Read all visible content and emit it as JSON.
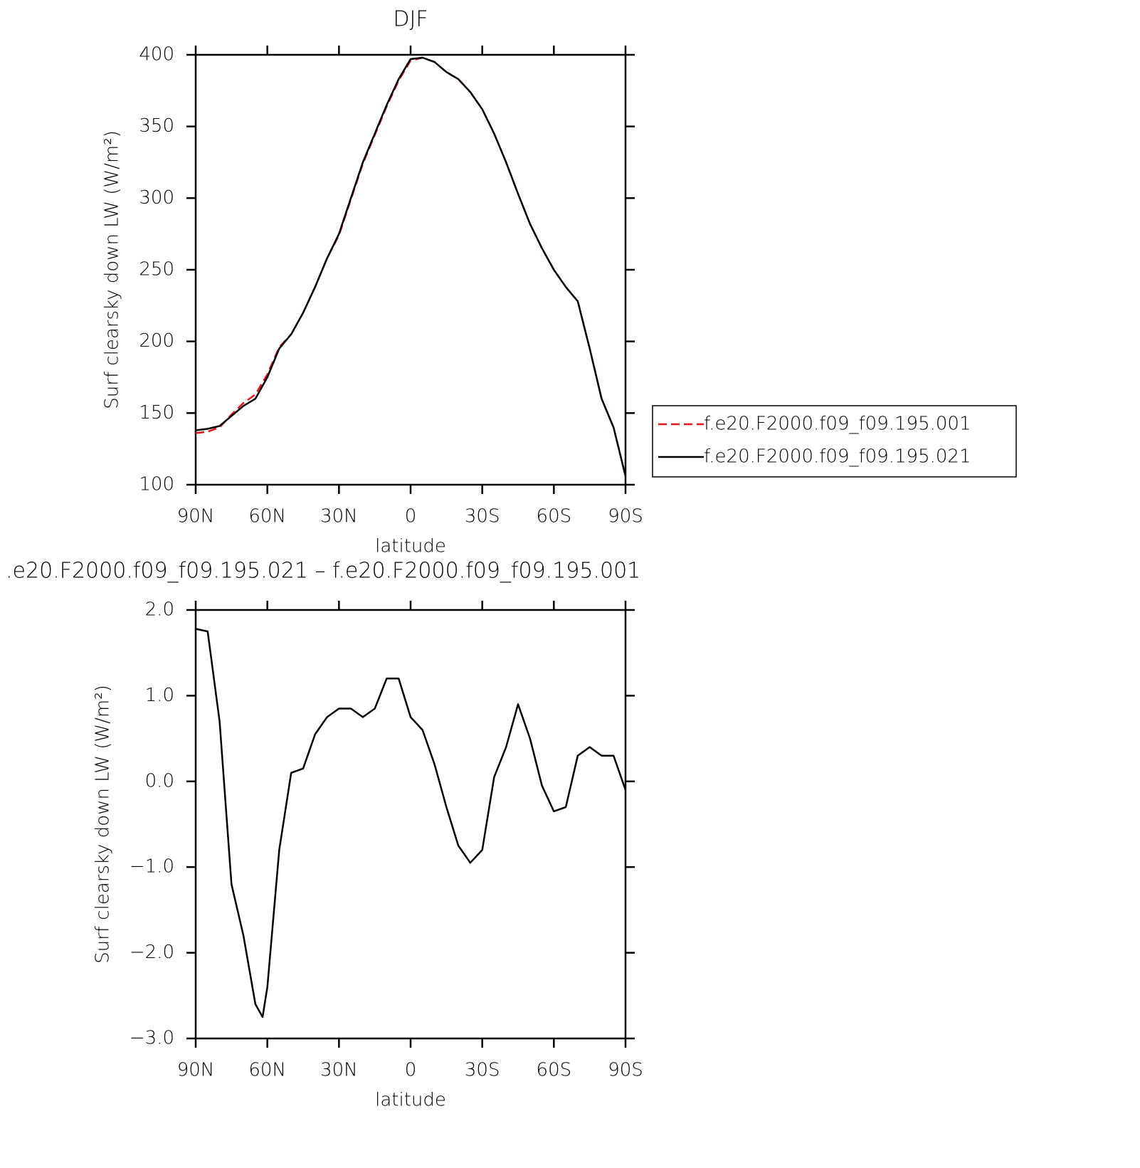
{
  "chart_data": [
    {
      "type": "line",
      "title": "DJF",
      "xlabel": "latitude",
      "ylabel": "Surf clearsky down LW (W/m²)",
      "x": [
        90,
        85,
        80,
        75,
        70,
        65,
        60,
        55,
        50,
        45,
        40,
        35,
        30,
        25,
        20,
        15,
        10,
        5,
        0,
        -5,
        -10,
        -15,
        -20,
        -25,
        -30,
        -35,
        -40,
        -45,
        -50,
        -55,
        -60,
        -65,
        -70,
        -75,
        -80,
        -85,
        -90
      ],
      "series": [
        {
          "name": "f.e20.F2000.f09_f09.195.001",
          "color": "#e8141c",
          "style": "dashed",
          "values": [
            136,
            137,
            140,
            149,
            157,
            163,
            177,
            196,
            205,
            220,
            238,
            258,
            274,
            299,
            324,
            344,
            364,
            382,
            396,
            398,
            395,
            388,
            383,
            374,
            362,
            345,
            325,
            303,
            282,
            265,
            250,
            238,
            228,
            195,
            160,
            140,
            106
          ]
        },
        {
          "name": "f.e20.F2000.f09_f09.195.021",
          "color": "#000000",
          "style": "solid",
          "values": [
            138,
            139,
            141,
            148,
            155,
            160,
            175,
            195,
            205,
            220,
            238,
            258,
            275,
            300,
            325,
            345,
            365,
            383,
            397,
            398,
            395,
            388,
            383,
            374,
            362,
            345,
            325,
            303,
            282,
            265,
            250,
            238,
            228,
            195,
            160,
            140,
            106
          ]
        }
      ],
      "xlim": [
        90,
        -90
      ],
      "xticks": [
        {
          "value": 90,
          "label": "90N"
        },
        {
          "value": 60,
          "label": "60N"
        },
        {
          "value": 30,
          "label": "30N"
        },
        0,
        {
          "value": -30,
          "label": "30S"
        },
        {
          "value": -60,
          "label": "60S"
        },
        {
          "value": -90,
          "label": "90S"
        }
      ],
      "ylim": [
        100,
        400
      ],
      "yticks": [
        100,
        150,
        200,
        250,
        300,
        350,
        400
      ],
      "legend": "right"
    },
    {
      "type": "line",
      "title": ".e20.F2000.f09_f09.195.021 – f.e20.F2000.f09_f09.195.001",
      "xlabel": "latitude",
      "ylabel": "Surf clearsky down LW (W/m²)",
      "x": [
        90,
        85,
        80,
        75,
        70,
        65,
        62,
        60,
        55,
        50,
        45,
        40,
        35,
        30,
        25,
        20,
        15,
        10,
        5,
        0,
        -5,
        -10,
        -15,
        -20,
        -25,
        -30,
        -35,
        -40,
        -45,
        -50,
        -55,
        -60,
        -65,
        -70,
        -75,
        -80,
        -85,
        -90
      ],
      "series": [
        {
          "name": "f.e20.F2000.f09_f09.195.021",
          "color": "#000000",
          "style": "solid",
          "values": [
            1.78,
            1.75,
            0.7,
            -1.2,
            -1.8,
            -2.6,
            -2.75,
            -2.4,
            -0.8,
            0.1,
            0.15,
            0.55,
            0.75,
            0.85,
            0.85,
            0.75,
            0.85,
            1.2,
            1.2,
            0.75,
            0.6,
            0.2,
            -0.3,
            -0.75,
            -0.95,
            -0.8,
            0.05,
            0.4,
            0.9,
            0.5,
            -0.05,
            -0.35,
            -0.3,
            0.3,
            0.4,
            0.3,
            0.3,
            -0.1
          ]
        }
      ],
      "xlim": [
        90,
        -90
      ],
      "xticks": [
        {
          "value": 90,
          "label": "90N"
        },
        {
          "value": 60,
          "label": "60N"
        },
        {
          "value": 30,
          "label": "30N"
        },
        0,
        {
          "value": -30,
          "label": "30S"
        },
        {
          "value": -60,
          "label": "60S"
        },
        {
          "value": -90,
          "label": "90S"
        }
      ],
      "ylim": [
        -3,
        2
      ],
      "yticks": [
        {
          "value": -3,
          "label": "−3.0"
        },
        {
          "value": -2,
          "label": "−2.0"
        },
        {
          "value": -1,
          "label": "−1.0"
        },
        {
          "value": 0,
          "label": "0.0"
        },
        {
          "value": 1,
          "label": "1.0"
        },
        {
          "value": 2,
          "label": "2.0"
        }
      ]
    }
  ]
}
